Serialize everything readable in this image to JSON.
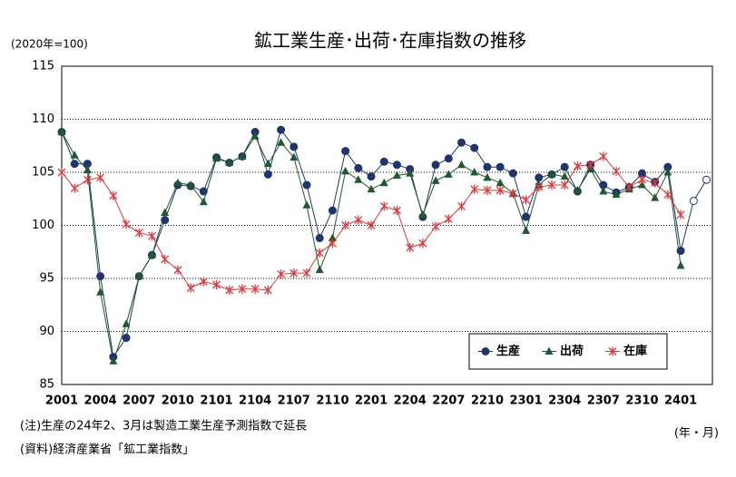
{
  "chart_data": {
    "type": "line",
    "title": "鉱工業生産･出荷･在庫指数の推移",
    "subtitle": "(2020年=100)",
    "x_label": "(年・月)",
    "notes": [
      "(注)生産の24年2、3月は製造工業生産予測指数で延長",
      "(資料)経済産業省「鉱工業指数」"
    ],
    "categories": [
      "2001",
      null,
      null,
      "2004",
      null,
      null,
      "2007",
      null,
      null,
      "2010",
      null,
      null,
      "2101",
      null,
      null,
      "2104",
      null,
      null,
      "2107",
      null,
      null,
      "2110",
      null,
      null,
      "2201",
      null,
      null,
      "2204",
      null,
      null,
      "2207",
      null,
      null,
      "2210",
      null,
      null,
      "2301",
      null,
      null,
      "2304",
      null,
      null,
      "2307",
      null,
      null,
      "2310",
      null,
      null,
      "2401",
      null,
      null
    ],
    "series": [
      {
        "name": "生産",
        "color": "#1f3570",
        "marker": "circle",
        "hollow_from": 49,
        "values": [
          108.8,
          105.8,
          105.8,
          95.2,
          87.6,
          89.4,
          95.2,
          97.2,
          100.5,
          103.8,
          103.7,
          103.2,
          106.4,
          105.9,
          106.5,
          108.8,
          104.8,
          109.0,
          107.4,
          103.8,
          98.8,
          101.4,
          107.0,
          105.4,
          104.6,
          106.0,
          105.7,
          105.3,
          100.8,
          105.7,
          106.3,
          107.8,
          107.3,
          105.5,
          105.5,
          104.9,
          100.8,
          104.5,
          104.8,
          105.5,
          103.2,
          105.7,
          103.8,
          103.1,
          103.6,
          104.9,
          104.1,
          105.5,
          97.6,
          102.3,
          104.3
        ]
      },
      {
        "name": "出荷",
        "color": "#1e5a2c",
        "marker": "triangle",
        "values": [
          108.8,
          106.6,
          105.2,
          93.7,
          87.2,
          90.7,
          95.2,
          97.2,
          101.2,
          104.0,
          103.8,
          102.2,
          106.3,
          105.9,
          106.5,
          108.4,
          105.8,
          107.8,
          106.4,
          101.9,
          95.8,
          98.8,
          105.1,
          104.3,
          103.4,
          104.0,
          104.7,
          104.9,
          101.0,
          104.2,
          104.8,
          105.7,
          105.0,
          104.5,
          104.0,
          103.0,
          99.5,
          103.8,
          104.8,
          104.6,
          103.3,
          105.3,
          103.2,
          102.9,
          103.4,
          103.8,
          102.6,
          105.0,
          96.2,
          null,
          null
        ]
      },
      {
        "name": "在庫",
        "color": "#e2383a",
        "marker": "star",
        "values": [
          105.0,
          103.5,
          104.3,
          104.5,
          102.8,
          100.1,
          99.3,
          99.0,
          96.8,
          95.8,
          94.1,
          94.7,
          94.4,
          93.9,
          94.0,
          94.0,
          93.9,
          95.4,
          95.5,
          95.5,
          97.4,
          98.3,
          100.0,
          100.5,
          100.0,
          101.8,
          101.4,
          97.9,
          98.3,
          99.9,
          100.6,
          101.8,
          103.4,
          103.3,
          103.3,
          103.0,
          102.4,
          103.6,
          103.8,
          103.8,
          105.6,
          105.7,
          106.5,
          105.1,
          103.6,
          104.3,
          104.0,
          102.9,
          101.0,
          null,
          null
        ]
      }
    ],
    "ylim": [
      85,
      115
    ],
    "yticks": [
      85,
      90,
      95,
      100,
      105,
      110,
      115
    ],
    "grid": true,
    "legend": "lower right"
  }
}
